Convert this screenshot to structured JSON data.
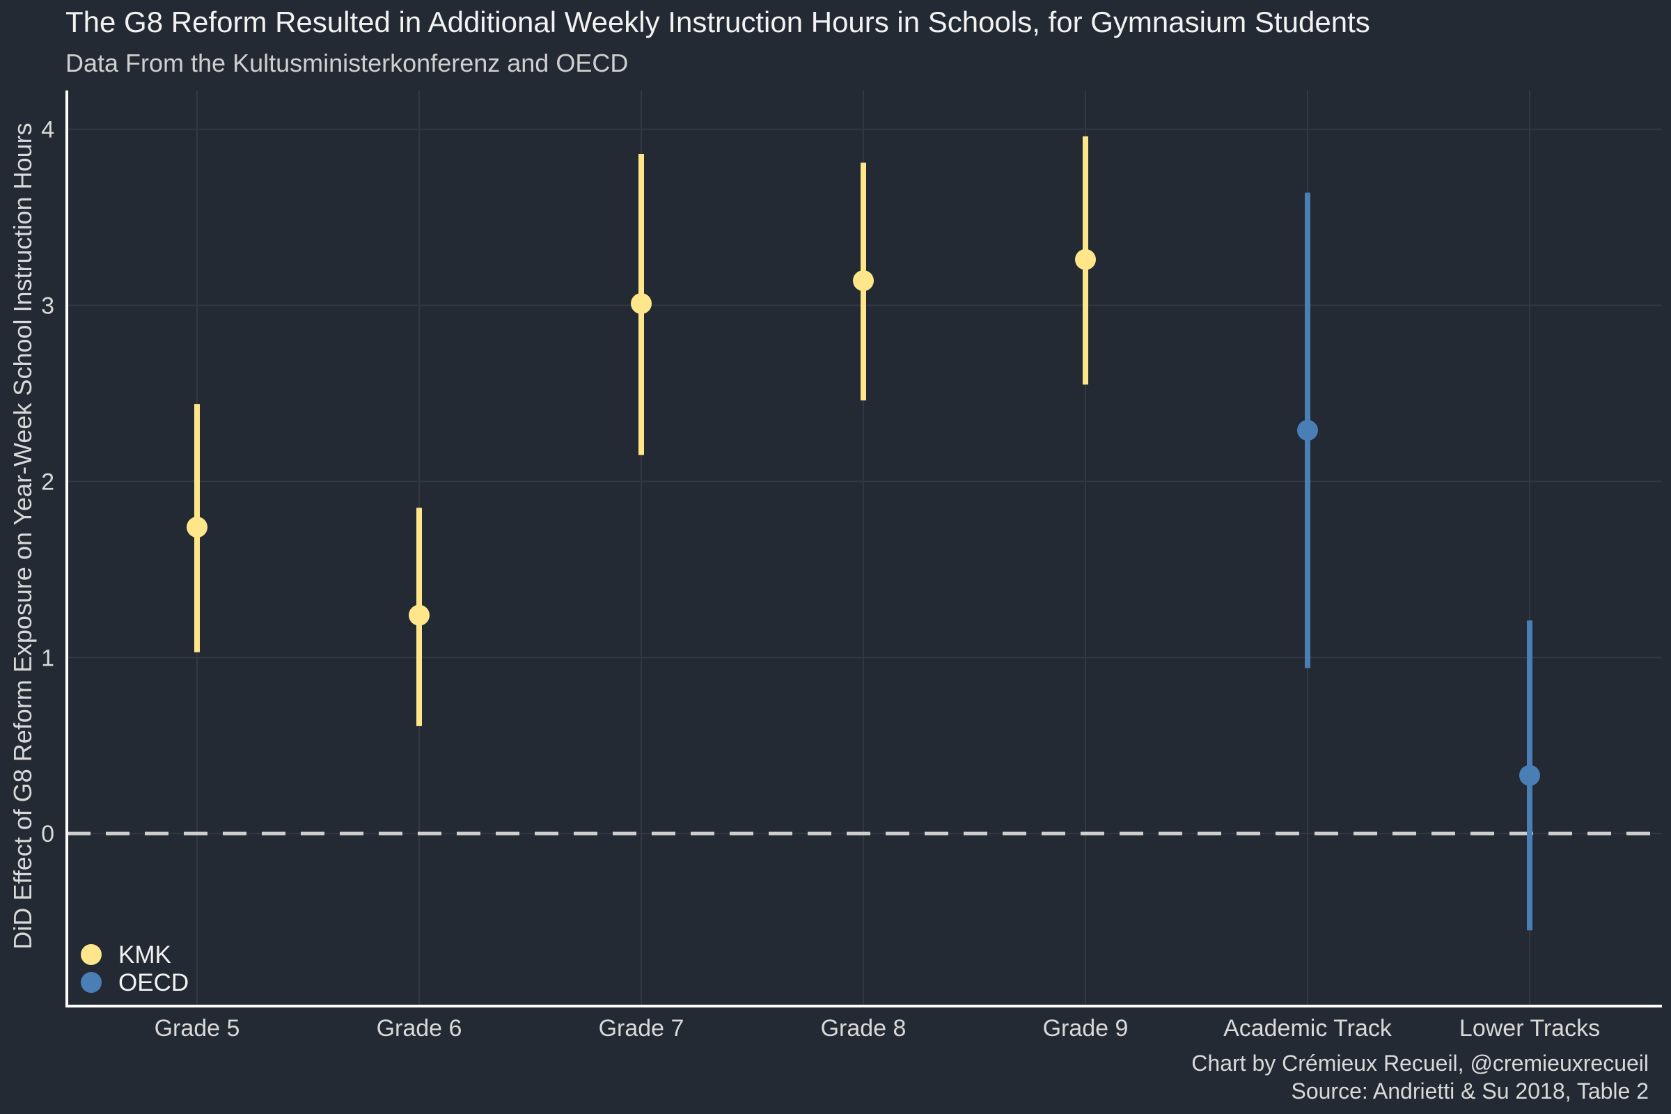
{
  "chart_data": {
    "type": "scatter",
    "title": "The G8 Reform Resulted in Additional Weekly Instruction Hours in Schools, for Gymnasium Students",
    "subtitle": "Data From the Kultusministerkonferenz and OECD",
    "ylabel": "DiD Effect of G8 Reform Exposure on Year-Week School Instruction Hours",
    "xlabel": "",
    "categories": [
      "Grade 5",
      "Grade 6",
      "Grade 7",
      "Grade 8",
      "Grade 9",
      "Academic Track",
      "Lower Tracks"
    ],
    "yticks": [
      "0",
      "1",
      "2",
      "3",
      "4"
    ],
    "ylim": [
      -0.98,
      4.22
    ],
    "reference_line": 0,
    "grid": true,
    "legend_position": "bottom-left",
    "series": [
      {
        "name": "KMK",
        "color": "#ffe68a",
        "points": [
          {
            "category": "Grade 5",
            "estimate": 1.74,
            "lower": 1.03,
            "upper": 2.44
          },
          {
            "category": "Grade 6",
            "estimate": 1.24,
            "lower": 0.61,
            "upper": 1.85
          },
          {
            "category": "Grade 7",
            "estimate": 3.01,
            "lower": 2.15,
            "upper": 3.86
          },
          {
            "category": "Grade 8",
            "estimate": 3.14,
            "lower": 2.46,
            "upper": 3.81
          },
          {
            "category": "Grade 9",
            "estimate": 3.26,
            "lower": 2.55,
            "upper": 3.96
          }
        ]
      },
      {
        "name": "OECD",
        "color": "#4a7fb5",
        "points": [
          {
            "category": "Academic Track",
            "estimate": 2.29,
            "lower": 0.94,
            "upper": 3.64
          },
          {
            "category": "Lower Tracks",
            "estimate": 0.33,
            "lower": -0.55,
            "upper": 1.21
          }
        ]
      }
    ]
  },
  "caption": {
    "line1": "Chart by Crémieux Recueil, @cremieuxrecueil",
    "line2": "Source: Andrietti & Su 2018, Table 2"
  },
  "colors": {
    "background": "#242a33",
    "grid": "#323944",
    "reference_line": "#cfcfcf",
    "axis": "#ffffff"
  }
}
